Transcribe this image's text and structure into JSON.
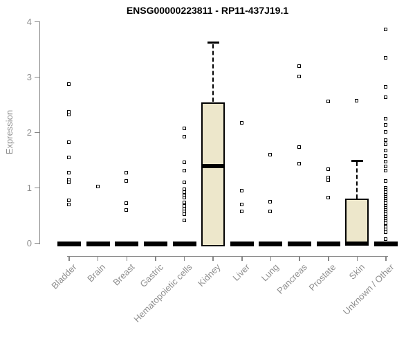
{
  "chart_data": {
    "type": "boxplot",
    "title": "ENSG00000223811 - RP11-437J19.1",
    "xlabel": "",
    "ylabel": "Expression",
    "ylim": [
      0,
      4
    ],
    "yticks": [
      0,
      1,
      2,
      3,
      4
    ],
    "grid": false,
    "legend": "none",
    "colors": {
      "box_fill": "#EDE7CB",
      "box_border": "#000000",
      "axis": "#878787",
      "tick_labels": "#8f8f8f",
      "title": "#000000",
      "outlier_border": "#000000",
      "outlier_fill": "#ffffff"
    },
    "categories": [
      "Bladder",
      "Brain",
      "Breast",
      "Gastric",
      "Hematopoietic cells",
      "Kidney",
      "Liver",
      "Lung",
      "Pancreas",
      "Prostate",
      "Skin",
      "Unknown / Other"
    ],
    "series": [
      {
        "category": "Bladder",
        "median": 0,
        "q1": 0,
        "q3": 0,
        "whisker_low": 0,
        "whisker_high": 0,
        "outliers": [
          2.88,
          2.38,
          2.32,
          1.83,
          1.55,
          1.27,
          1.15,
          1.1,
          0.77,
          0.7
        ]
      },
      {
        "category": "Brain",
        "median": 0,
        "q1": 0,
        "q3": 0,
        "whisker_low": 0,
        "whisker_high": 0,
        "outliers": [
          1.02
        ]
      },
      {
        "category": "Breast",
        "median": 0,
        "q1": 0,
        "q3": 0,
        "whisker_low": 0,
        "whisker_high": 0,
        "outliers": [
          1.28,
          1.13,
          0.73,
          0.6
        ]
      },
      {
        "category": "Gastric",
        "median": 0,
        "q1": 0,
        "q3": 0,
        "whisker_low": 0,
        "whisker_high": 0,
        "outliers": []
      },
      {
        "category": "Hematopoietic cells",
        "median": 0,
        "q1": 0,
        "q3": 0,
        "whisker_low": 0,
        "whisker_high": 0,
        "outliers": [
          2.07,
          1.92,
          1.46,
          1.31,
          1.1,
          0.98,
          0.92,
          0.86,
          0.83,
          0.74,
          0.68,
          0.62,
          0.58,
          0.52,
          0.41
        ]
      },
      {
        "category": "Kidney",
        "median": 1.4,
        "q1": 0,
        "q3": 2.55,
        "whisker_low": 0,
        "whisker_high": 3.62,
        "outliers": []
      },
      {
        "category": "Liver",
        "median": 0,
        "q1": 0,
        "q3": 0,
        "whisker_low": 0,
        "whisker_high": 0,
        "outliers": [
          2.18,
          0.95,
          0.7,
          0.58
        ]
      },
      {
        "category": "Lung",
        "median": 0,
        "q1": 0,
        "q3": 0,
        "whisker_low": 0,
        "whisker_high": 0,
        "outliers": [
          1.6,
          0.75,
          0.58
        ]
      },
      {
        "category": "Pancreas",
        "median": 0,
        "q1": 0,
        "q3": 0,
        "whisker_low": 0,
        "whisker_high": 0,
        "outliers": [
          3.2,
          3.01,
          1.74,
          1.44
        ]
      },
      {
        "category": "Prostate",
        "median": 0,
        "q1": 0,
        "q3": 0,
        "whisker_low": 0,
        "whisker_high": 0,
        "outliers": [
          2.56,
          1.34,
          1.19,
          1.14,
          0.82
        ]
      },
      {
        "category": "Skin",
        "median": 0,
        "q1": 0,
        "q3": 0.81,
        "whisker_low": 0,
        "whisker_high": 1.49,
        "outliers": [
          2.57
        ]
      },
      {
        "category": "Unknown / Other",
        "median": 0,
        "q1": 0,
        "q3": 0,
        "whisker_low": 0,
        "whisker_high": 0,
        "outliers": [
          3.86,
          3.35,
          2.83,
          2.64,
          2.25,
          2.14,
          2.01,
          1.86,
          1.79,
          1.67,
          1.58,
          1.48,
          1.39,
          1.31,
          1.12,
          1.0,
          0.96,
          0.92,
          0.88,
          0.84,
          0.8,
          0.76,
          0.72,
          0.68,
          0.64,
          0.6,
          0.56,
          0.52,
          0.48,
          0.44,
          0.4,
          0.36,
          0.3,
          0.25,
          0.2,
          0.08
        ]
      }
    ]
  }
}
